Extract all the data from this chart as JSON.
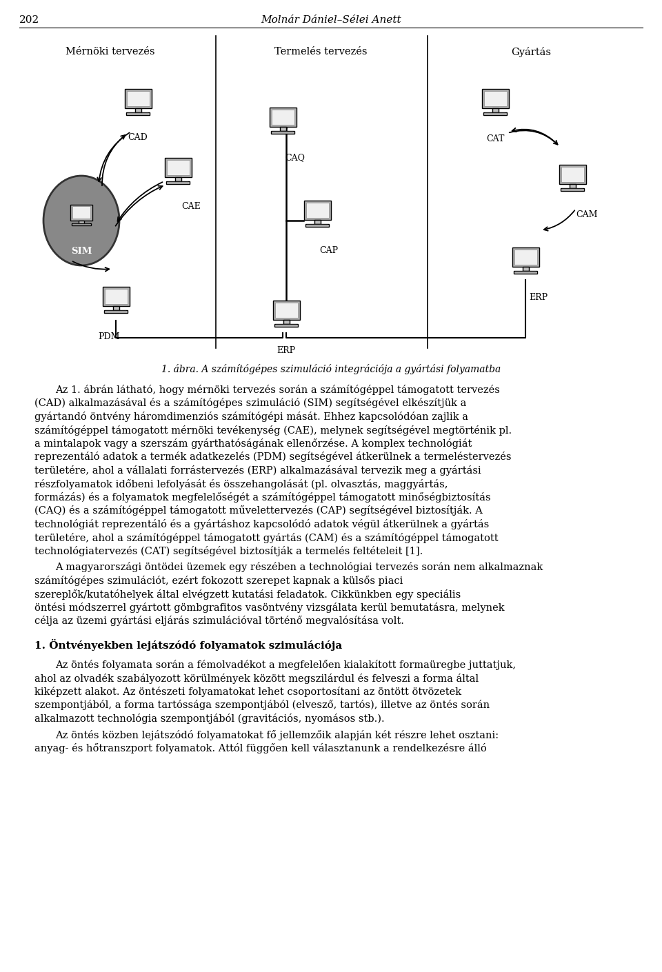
{
  "page_number": "202",
  "header_title": "Molnár Dániel–Sélei Anett",
  "figure_caption": "1. ábra. A számítógépes szimuláció integrációja a gyártási folyamatba",
  "section_labels": {
    "mernoki": "Mérnöki tervezés",
    "termeles": "Termelés tervezés",
    "gyartas": "Gyártás"
  },
  "paragraph1": "Az 1. ábrán látható, hogy mérnöki tervezés során a számítógéppel támogatott tervezés (CAD) alkalmazásával és a számítógépes szimuláció (SIM) segítségével elkészítjük a gyártandó öntvény háromdimenziós számítógépi mását. Ehhez kapcsolódóan zajlik a számítógéppel támogatott mérnöki tevékenység (CAE), melynek segítségével megtörténik pl. a mintalapok vagy a szerszám gyárthatóságának ellenőrzése. A komplex technológiát reprezentáló adatok a termék adatkezelés (PDM) segítségével átkerülnek a termeléstervezés területére, ahol a vállalati forrástervezés (ERP) alkalmazásával tervezik meg a gyártási részfolyamatok időbeni lefolyását és összehangolását (pl. olvasztás, maggyártás, formázás) és a folyamatok megfelelőségét a számítógéppel támogatott minőségbiztosítás (CAQ) és a számítógéppel támogatott művelettervezés (CAP) segítségével biztosítják. A technológiát reprezentáló és a gyártáshoz kapcsolódó adatok végül átkerülnek a gyártás területére, ahol a számítógéppel támogatott gyártás (CAM) és a számítógéppel támogatott technológiatervezés (CAT) segítségével biztosítják a termelés feltételeit [1].",
  "paragraph2": "A magyarországi öntödei üzemek egy részében a technológiai tervezés során nem alkalmaznak számítógépes szimulációt, ezért fokozott szerepet kapnak a külsős piaci szereplők/kutatóhelyek által elvégzett kutatási feladatok. Cikkünkben egy speciális öntési módszerrel gyártott gömbgrafitos vasöntvény vizsgálata kerül bemutatásra, melynek célja az üzemi gyártási eljárás szimulációval történő megvalósítása volt.",
  "section_heading": "1. Öntvényekben lejátszódó folyamatok szimulációja",
  "paragraph3": "Az öntés folyamata során a fémolvadékot a megfelelően kialakított formaüregbe juttatjuk, ahol az olvadék szabályozott körülmények között megszilárdul és felveszi a forma által kiképzett alakot. Az öntészeti folyamatokat lehet csoportosítani az öntött ötvözetek szempontjából, a forma tartóssága szempontjából (elvesző, tartós), illetve az öntés során alkalmazott technológia szempontjából (gravitációs, nyomásos stb.).",
  "paragraph4": "Az öntés közben lejátszódó folyamatokat fő jellemzőik alapján két részre lehet osztani: anyag- és hőtranszport folyamatok. Attól függően kell választanunk a rendelkezésre álló",
  "bg_color": "#ffffff",
  "text_color": "#000000"
}
